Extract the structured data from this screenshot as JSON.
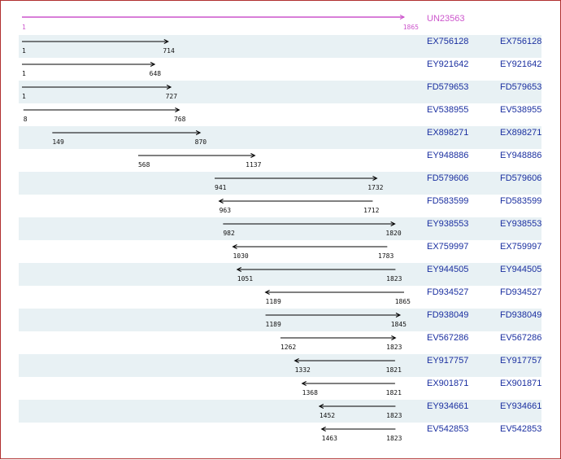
{
  "colors": {
    "reference": "#cc55cc",
    "accession": "#1a2fa0",
    "arrow": "#000000",
    "stripe": "#e8f1f4",
    "border": "#b03030"
  },
  "axis": {
    "min": 1,
    "max": 1865
  },
  "reference": {
    "id": "UN23563",
    "start": 1,
    "end": 1865,
    "direction": "forward"
  },
  "alignments": [
    {
      "id": "EX756128",
      "link_label": "EX756128",
      "start": 1,
      "end": 714,
      "direction": "forward"
    },
    {
      "id": "EY921642",
      "link_label": "EY921642",
      "start": 1,
      "end": 648,
      "direction": "forward"
    },
    {
      "id": "FD579653",
      "link_label": "FD579653",
      "start": 1,
      "end": 727,
      "direction": "forward"
    },
    {
      "id": "EV538955",
      "link_label": "EV538955",
      "start": 8,
      "end": 768,
      "direction": "forward"
    },
    {
      "id": "EX898271",
      "link_label": "EX898271",
      "start": 149,
      "end": 870,
      "direction": "forward"
    },
    {
      "id": "EY948886",
      "link_label": "EY948886",
      "start": 568,
      "end": 1137,
      "direction": "forward"
    },
    {
      "id": "FD579606",
      "link_label": "FD579606",
      "start": 941,
      "end": 1732,
      "direction": "forward"
    },
    {
      "id": "FD583599",
      "link_label": "FD583599",
      "start": 963,
      "end": 1712,
      "direction": "reverse"
    },
    {
      "id": "EY938553",
      "link_label": "EY938553",
      "start": 982,
      "end": 1820,
      "direction": "forward"
    },
    {
      "id": "EX759997",
      "link_label": "EX759997",
      "start": 1030,
      "end": 1783,
      "direction": "reverse"
    },
    {
      "id": "EY944505",
      "link_label": "EY944505",
      "start": 1051,
      "end": 1823,
      "direction": "reverse"
    },
    {
      "id": "FD934527",
      "link_label": "FD934527",
      "start": 1189,
      "end": 1865,
      "direction": "reverse"
    },
    {
      "id": "FD938049",
      "link_label": "FD938049",
      "start": 1189,
      "end": 1845,
      "direction": "forward"
    },
    {
      "id": "EV567286",
      "link_label": "EV567286",
      "start": 1262,
      "end": 1823,
      "direction": "forward"
    },
    {
      "id": "EY917757",
      "link_label": "EY917757",
      "start": 1332,
      "end": 1821,
      "direction": "reverse"
    },
    {
      "id": "EX901871",
      "link_label": "EX901871",
      "start": 1368,
      "end": 1821,
      "direction": "reverse"
    },
    {
      "id": "EY934661",
      "link_label": "EY934661",
      "start": 1452,
      "end": 1823,
      "direction": "reverse"
    },
    {
      "id": "EV542853",
      "link_label": "EV542853",
      "start": 1463,
      "end": 1823,
      "direction": "reverse"
    }
  ]
}
